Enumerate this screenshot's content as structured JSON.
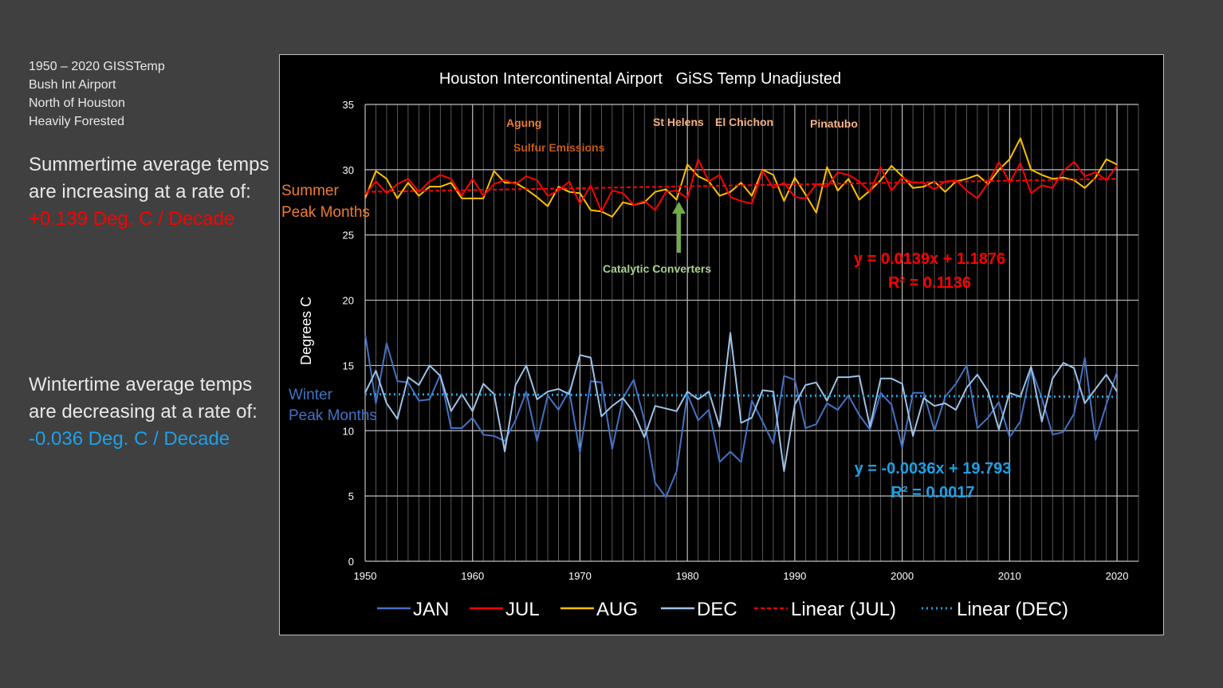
{
  "side": {
    "line1": "1950 – 2020 GISSTemp",
    "line2": "Bush Int Airport",
    "line3": "North of Houston",
    "line4": "Heavily Forested",
    "summer_text": "Summertime average temps are increasing at a rate of:",
    "summer_rate": "+0.139 Deg. C / Decade",
    "summer_rate_color": "#ff0000",
    "winter_text": "Wintertime average temps are decreasing at a rate of:",
    "winter_rate": "-0.036 Deg. C / Decade",
    "winter_rate_color": "#1ea0e6"
  },
  "chart_data": {
    "type": "line",
    "title": "Houston Intercontinental Airport   GiSS Temp Unadjusted",
    "ylabel": "Degrees C",
    "xlabel": "",
    "xlim": [
      1950,
      2022
    ],
    "ylim": [
      0,
      35
    ],
    "x_ticks": [
      1950,
      1960,
      1970,
      1980,
      1990,
      2000,
      2010,
      2020
    ],
    "y_ticks": [
      0,
      5,
      10,
      15,
      20,
      25,
      30,
      35
    ],
    "grid": true,
    "legend_position": "bottom",
    "x": [
      1950,
      1951,
      1952,
      1953,
      1954,
      1955,
      1956,
      1957,
      1958,
      1959,
      1960,
      1961,
      1962,
      1963,
      1964,
      1965,
      1966,
      1967,
      1968,
      1969,
      1970,
      1971,
      1972,
      1973,
      1974,
      1975,
      1976,
      1977,
      1978,
      1979,
      1980,
      1981,
      1982,
      1983,
      1984,
      1985,
      1986,
      1987,
      1988,
      1989,
      1990,
      1991,
      1992,
      1993,
      1994,
      1995,
      1996,
      1997,
      1998,
      1999,
      2000,
      2001,
      2002,
      2003,
      2004,
      2005,
      2006,
      2007,
      2008,
      2009,
      2010,
      2011,
      2012,
      2013,
      2014,
      2015,
      2016,
      2017,
      2018,
      2019,
      2020
    ],
    "series": [
      {
        "name": "JAN",
        "color": "#4472c4",
        "values": [
          17.4,
          12.1,
          16.7,
          13.8,
          13.7,
          12.3,
          12.4,
          14.3,
          10.2,
          10.2,
          11.0,
          9.7,
          9.6,
          9.2,
          10.8,
          13.0,
          9.2,
          12.7,
          11.6,
          13.1,
          8.3,
          13.8,
          13.7,
          8.6,
          12.5,
          13.9,
          10.8,
          6.0,
          4.9,
          6.9,
          12.8,
          10.8,
          11.6,
          7.6,
          8.4,
          7.6,
          12.3,
          10.7,
          9.0,
          14.2,
          13.9,
          10.2,
          10.5,
          12.1,
          11.6,
          12.7,
          11.2,
          10.1,
          12.9,
          12.0,
          8.7,
          12.9,
          12.9,
          10.0,
          12.6,
          13.6,
          15.0,
          10.2,
          11.0,
          12.2,
          9.5,
          10.7,
          14.8,
          12.5,
          9.7,
          9.9,
          11.3,
          15.6,
          9.3,
          12.0,
          14.5
        ]
      },
      {
        "name": "JUL",
        "color": "#ff0000",
        "values": [
          28.1,
          29.1,
          28.2,
          28.9,
          29.3,
          28.3,
          29.1,
          29.6,
          29.3,
          28.0,
          29.3,
          28.0,
          28.9,
          29.2,
          28.9,
          29.5,
          29.2,
          28.0,
          28.4,
          29.1,
          27.4,
          28.8,
          26.8,
          28.4,
          28.2,
          27.3,
          27.6,
          26.9,
          28.3,
          28.4,
          27.8,
          30.8,
          29.1,
          29.6,
          27.9,
          27.6,
          27.4,
          29.9,
          28.6,
          29.0,
          27.9,
          27.8,
          28.9,
          28.7,
          29.8,
          29.6,
          29.1,
          28.3,
          30.2,
          28.4,
          29.4,
          29.0,
          29.0,
          28.5,
          29.1,
          29.2,
          28.4,
          27.8,
          29.0,
          30.6,
          29.0,
          30.5,
          28.2,
          28.8,
          28.6,
          29.9,
          30.6,
          29.5,
          29.8,
          29.2,
          30.3
        ]
      },
      {
        "name": "AUG",
        "color": "#ffc000",
        "values": [
          27.8,
          29.9,
          29.3,
          27.8,
          29.0,
          28.0,
          28.7,
          28.7,
          29.0,
          27.8,
          27.8,
          27.8,
          29.9,
          29.0,
          29.0,
          28.5,
          27.9,
          27.2,
          28.7,
          28.3,
          28.2,
          26.9,
          26.8,
          26.4,
          27.5,
          27.3,
          27.5,
          28.3,
          28.5,
          27.7,
          30.4,
          29.5,
          29.1,
          28.0,
          28.3,
          29.0,
          28.0,
          30.0,
          29.6,
          27.6,
          29.4,
          28.1,
          26.7,
          30.2,
          28.4,
          29.3,
          27.7,
          28.4,
          29.2,
          30.3,
          29.5,
          28.6,
          28.7,
          29.1,
          28.3,
          29.1,
          29.3,
          29.6,
          28.9,
          30.0,
          30.8,
          32.4,
          30.0,
          29.6,
          29.3,
          29.4,
          29.2,
          28.6,
          29.4,
          30.8,
          30.4
        ]
      },
      {
        "name": "DEC",
        "color": "#9dc3e6",
        "values": [
          12.9,
          14.6,
          12.1,
          10.9,
          14.1,
          13.5,
          15.0,
          14.2,
          11.5,
          12.8,
          11.5,
          13.6,
          12.8,
          8.4,
          13.5,
          15.0,
          12.4,
          13.0,
          13.2,
          12.8,
          15.8,
          15.6,
          11.1,
          11.9,
          12.5,
          11.4,
          9.5,
          11.9,
          11.7,
          11.5,
          13.0,
          12.4,
          13.0,
          10.3,
          17.5,
          10.6,
          11.0,
          13.1,
          13.0,
          6.9,
          12.0,
          13.5,
          13.7,
          12.3,
          14.1,
          14.1,
          14.2,
          10.3,
          14.0,
          14.0,
          13.6,
          9.6,
          12.5,
          11.9,
          12.1,
          11.6,
          13.3,
          14.3,
          13.0,
          10.1,
          12.9,
          12.6,
          14.9,
          10.7,
          14.0,
          15.2,
          14.8,
          12.1,
          13.2,
          14.3,
          13.0
        ]
      }
    ],
    "trendlines": [
      {
        "name": "Linear (JUL)",
        "color": "#ff0000",
        "style": "dashed",
        "start": [
          1950,
          28.3
        ],
        "end": [
          2020,
          29.3
        ]
      },
      {
        "name": "Linear (DEC)",
        "color": "#1ea0e6",
        "style": "dotted",
        "start": [
          1950,
          12.8
        ],
        "end": [
          2020,
          12.6
        ]
      }
    ],
    "annotations": {
      "agung": "Agung",
      "sulfur": "Sulfur Emissions",
      "sthelens": "St Helens",
      "elchichon": "El Chichon",
      "pinatubo": "Pinatubo",
      "catalytic": "Catalytic Converters",
      "summer_label_1": "Summer",
      "summer_label_2": "Peak Months",
      "winter_label_1": "Winter",
      "winter_label_2": "Peak Months",
      "jul_eq": "y = 0.0139x + 1.1876",
      "jul_r2": "R² = 0.1136",
      "dec_eq": "y = -0.0036x + 19.793",
      "dec_r2": "R² = 0.0017"
    },
    "legend": [
      "JAN",
      "JUL",
      "AUG",
      "DEC",
      "Linear (JUL)",
      "Linear (DEC)"
    ]
  }
}
